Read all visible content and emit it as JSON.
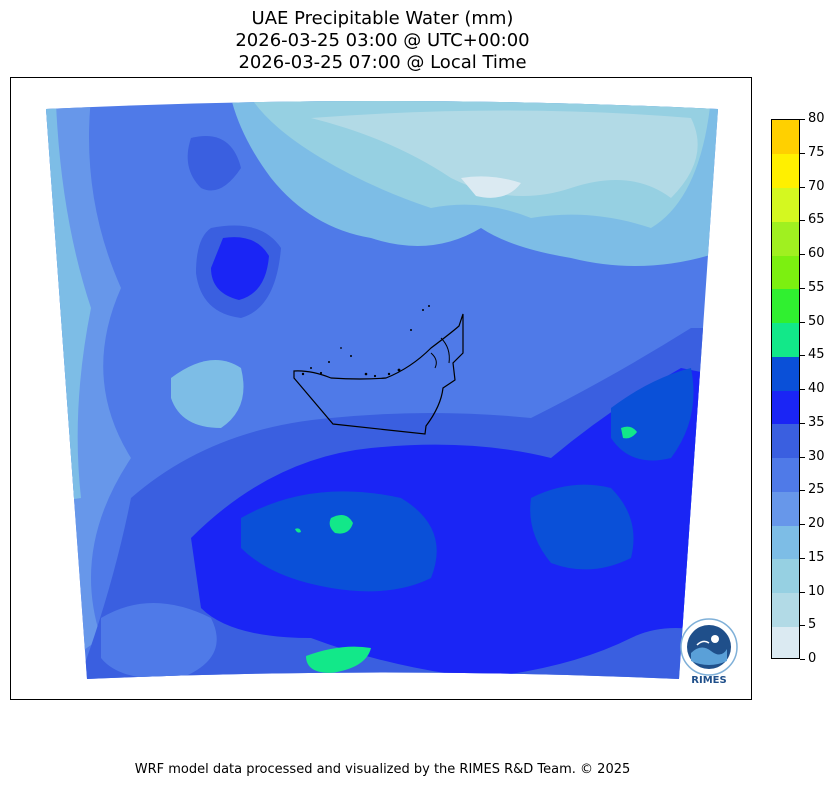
{
  "title": {
    "line1": "UAE Precipitable Water (mm)",
    "line2": "2026-03-25 03:00 @ UTC+00:00",
    "line3": "2026-03-25 07:00 @ Local Time"
  },
  "colorbar": {
    "ticks": [
      "0",
      "5",
      "10",
      "15",
      "20",
      "25",
      "30",
      "35",
      "40",
      "45",
      "50",
      "55",
      "60",
      "65",
      "70",
      "75",
      "80"
    ],
    "colors": [
      "#dbeaf2",
      "#b2dae6",
      "#96d0e2",
      "#7dbde6",
      "#6797ea",
      "#4f7ae8",
      "#3a5fe0",
      "#1a25f5",
      "#0a50d8",
      "#12e889",
      "#30f030",
      "#7cf010",
      "#a0f020",
      "#d4f820",
      "#fff000",
      "#ffd000"
    ]
  },
  "footer": "WRF model data processed and visualized by the RIMES R&D Team. © 2025",
  "logo": {
    "text": "RIMES"
  }
}
